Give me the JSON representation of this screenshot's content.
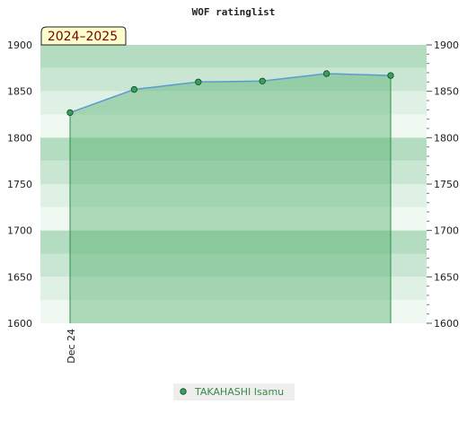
{
  "chart_data": {
    "type": "area",
    "title": "WOF ratinglist",
    "season_label": "2024–2025",
    "x_tick_labels": [
      "Dec 24"
    ],
    "y_ticks": [
      1600,
      1650,
      1700,
      1750,
      1800,
      1850,
      1900
    ],
    "ylim": [
      1600,
      1900
    ],
    "grid": true,
    "legend_position": "bottom-center",
    "series": [
      {
        "name": "TAKAHASHI Isamu",
        "color": "#3aa060",
        "line_color": "#5a9ad0",
        "points": [
          1827,
          1852,
          1860,
          1861,
          1869,
          1867
        ]
      }
    ],
    "colors": {
      "band_dark": "#b3dcc0",
      "band_mid": "#c9e6d2",
      "band_light": "#dff0e5",
      "band_pale": "#f0f8f2",
      "area_fill": "#4fae6a",
      "area_edge": "#2f8f4a",
      "season_bg": "#ffffcc"
    }
  }
}
